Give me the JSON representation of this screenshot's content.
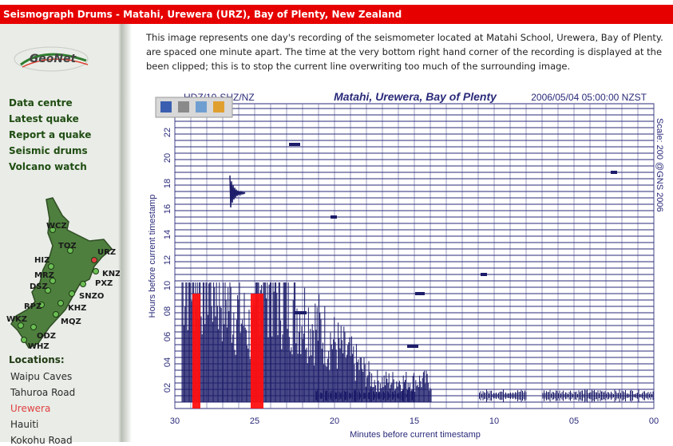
{
  "header": {
    "title": "Seismograph Drums - Matahi, Urewera (URZ), Bay of Plenty, New Zealand"
  },
  "logo": "GeoNet",
  "nav": [
    "Data centre",
    "Latest quake",
    "Report a quake",
    "Seismic drums",
    "Volcano watch"
  ],
  "map": {
    "stations": [
      "WCZ",
      "TOZ",
      "URZ",
      "HIZ",
      "KNZ",
      "MRZ",
      "PXZ",
      "DSZ",
      "SNZO",
      "RPZ",
      "KHZ",
      "WKZ",
      "MQZ",
      "ODZ",
      "WHZ"
    ]
  },
  "locations": {
    "title": "Locations:",
    "items": [
      "Waipu Caves",
      "Tahuroa Road",
      "Urewera",
      "Hauiti",
      "Kokohu Road"
    ]
  },
  "intro": {
    "lines": [
      "This image represents one day's recording of the seismometer located at Matahi School, Urewera, Bay of Plenty.",
      "are spaced one minute apart. The time at the very bottom right hand corner of the recording is displayed at the",
      "been clipped; this is to stop the current line overwriting too much of the surrounding image."
    ]
  },
  "seismogram": {
    "channel": "HDZ/10-SHZ/NZ",
    "title": "Matahi, Urewera, Bay of Plenty",
    "timestamp": "2006/05/04 05:00:00 NZST",
    "credit": "Scale: 200 @GNS 2006",
    "y_label": "Hours before current timestamp",
    "y_ticks": [
      "22",
      "20",
      "18",
      "16",
      "14",
      "12",
      "10",
      "08",
      "06",
      "04",
      "02"
    ],
    "x_ticks": [
      "30",
      "25",
      "20",
      "15",
      "10",
      "05",
      "00"
    ],
    "x_label": "Minutes before current timestamp"
  }
}
